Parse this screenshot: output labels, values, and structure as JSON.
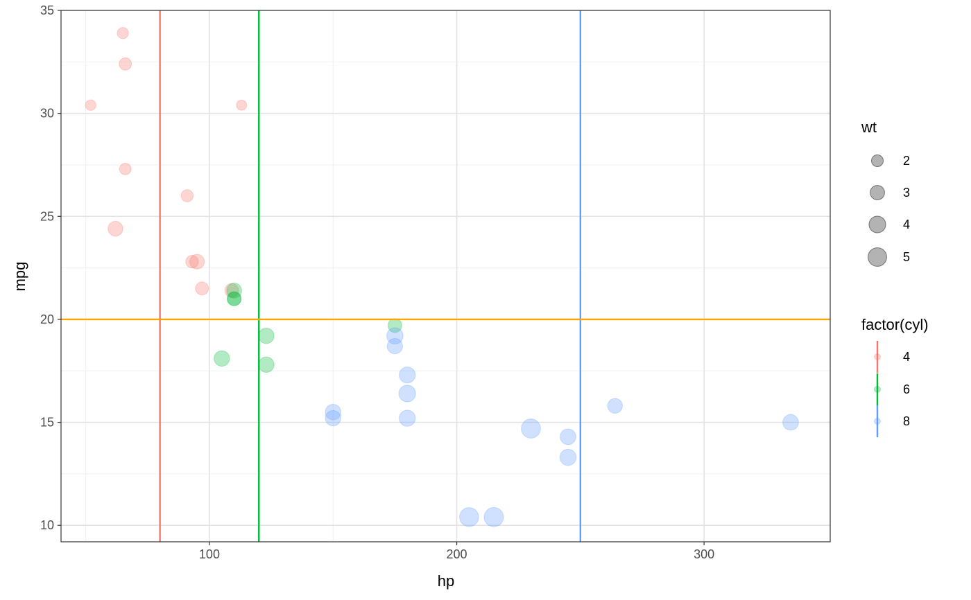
{
  "chart_data": {
    "type": "scatter",
    "xlabel": "hp",
    "ylabel": "mpg",
    "xlim": [
      40,
      351
    ],
    "ylim": [
      9.2,
      35
    ],
    "x_ticks_major": [
      100,
      200,
      300
    ],
    "x_ticks_minor": [
      50,
      150,
      250
    ],
    "y_ticks_major": [
      10,
      15,
      20,
      25,
      30,
      35
    ],
    "y_ticks_minor": [
      12.5,
      17.5,
      22.5,
      27.5,
      32.5
    ],
    "grid": true,
    "point_alpha": 0.3,
    "size_legend": {
      "title": "wt",
      "entries": [
        {
          "label": "2",
          "value": 2
        },
        {
          "label": "3",
          "value": 3
        },
        {
          "label": "4",
          "value": 4
        },
        {
          "label": "5",
          "value": 5
        }
      ],
      "color": "#808080"
    },
    "color_legend": {
      "title": "factor(cyl)",
      "entries": [
        {
          "label": "4",
          "color": "#F8766D"
        },
        {
          "label": "6",
          "color": "#00BA38"
        },
        {
          "label": "8",
          "color": "#619CFF"
        }
      ]
    },
    "reference_lines": [
      {
        "orientation": "vertical",
        "value": 80,
        "color": "#F8766D"
      },
      {
        "orientation": "vertical",
        "value": 120,
        "color": "#00BA38"
      },
      {
        "orientation": "vertical",
        "value": 250,
        "color": "#619CFF"
      },
      {
        "orientation": "horizontal",
        "value": 20,
        "color": "#FFA500"
      }
    ],
    "series": [
      {
        "name": "4",
        "color": "#F8766D",
        "points": [
          {
            "x": 93,
            "y": 22.8,
            "wt": 2.32
          },
          {
            "x": 62,
            "y": 24.4,
            "wt": 3.19
          },
          {
            "x": 95,
            "y": 22.8,
            "wt": 3.15
          },
          {
            "x": 66,
            "y": 32.4,
            "wt": 2.2
          },
          {
            "x": 52,
            "y": 30.4,
            "wt": 1.615
          },
          {
            "x": 65,
            "y": 33.9,
            "wt": 1.835
          },
          {
            "x": 97,
            "y": 21.5,
            "wt": 2.465
          },
          {
            "x": 66,
            "y": 27.3,
            "wt": 1.935
          },
          {
            "x": 91,
            "y": 26.0,
            "wt": 2.14
          },
          {
            "x": 113,
            "y": 30.4,
            "wt": 1.513
          },
          {
            "x": 109,
            "y": 21.4,
            "wt": 2.78
          }
        ]
      },
      {
        "name": "6",
        "color": "#00BA38",
        "points": [
          {
            "x": 110,
            "y": 21.0,
            "wt": 2.62
          },
          {
            "x": 110,
            "y": 21.0,
            "wt": 2.875
          },
          {
            "x": 110,
            "y": 21.4,
            "wt": 3.215
          },
          {
            "x": 105,
            "y": 18.1,
            "wt": 3.46
          },
          {
            "x": 123,
            "y": 19.2,
            "wt": 3.44
          },
          {
            "x": 123,
            "y": 17.8,
            "wt": 3.44
          },
          {
            "x": 175,
            "y": 19.7,
            "wt": 2.77
          }
        ]
      },
      {
        "name": "8",
        "color": "#619CFF",
        "points": [
          {
            "x": 175,
            "y": 18.7,
            "wt": 3.44
          },
          {
            "x": 245,
            "y": 14.3,
            "wt": 3.57
          },
          {
            "x": 180,
            "y": 16.4,
            "wt": 4.07
          },
          {
            "x": 180,
            "y": 17.3,
            "wt": 3.73
          },
          {
            "x": 180,
            "y": 15.2,
            "wt": 3.78
          },
          {
            "x": 205,
            "y": 10.4,
            "wt": 5.25
          },
          {
            "x": 215,
            "y": 10.4,
            "wt": 5.424
          },
          {
            "x": 230,
            "y": 14.7,
            "wt": 5.345
          },
          {
            "x": 150,
            "y": 15.5,
            "wt": 3.52
          },
          {
            "x": 150,
            "y": 15.2,
            "wt": 3.435
          },
          {
            "x": 245,
            "y": 13.3,
            "wt": 3.84
          },
          {
            "x": 175,
            "y": 19.2,
            "wt": 3.845
          },
          {
            "x": 264,
            "y": 15.8,
            "wt": 3.17
          },
          {
            "x": 335,
            "y": 15.0,
            "wt": 3.57
          }
        ]
      }
    ]
  }
}
